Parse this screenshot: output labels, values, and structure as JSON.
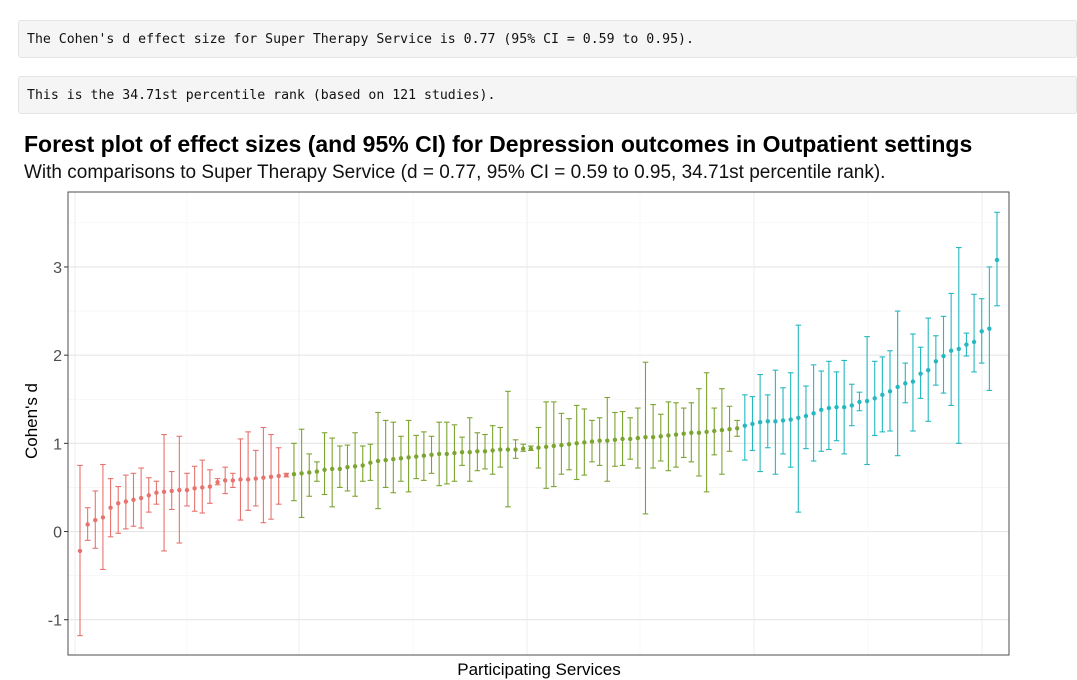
{
  "console_output": [
    "The Cohen's d effect size for Super Therapy Service is 0.77 (95% CI = 0.59 to 0.95).",
    "This is the 34.71st percentile rank (based on 121 studies)."
  ],
  "chart_data": {
    "type": "forest",
    "title": "Forest plot of effect sizes (and 95% CI) for Depression outcomes in Outpatient settings",
    "subtitle": "With comparisons to Super Therapy Service (d = 0.77, 95% CI = 0.59 to 0.95, 34.71st percentile rank).",
    "xlabel": "Participating Services",
    "ylabel": "Cohen's d",
    "ylim": [
      -1.4,
      3.85
    ],
    "yticks": [
      -1,
      0,
      1,
      2,
      3
    ],
    "grid": true,
    "legend": "none",
    "group_colors": [
      "#e8736e",
      "#7ca431",
      "#25b8c0"
    ],
    "n_studies": 121,
    "groups": [
      {
        "d": [
          -0.22,
          0.08,
          0.13,
          0.16,
          0.27,
          0.32,
          0.34,
          0.36,
          0.38,
          0.41,
          0.44,
          0.45,
          0.46,
          0.47,
          0.47,
          0.49,
          0.5,
          0.51,
          0.56,
          0.58,
          0.58,
          0.59,
          0.59,
          0.6,
          0.61,
          0.62,
          0.63,
          0.64
        ],
        "lo": [
          -1.18,
          -0.1,
          -0.19,
          -0.43,
          -0.06,
          -0.02,
          0.03,
          0.06,
          0.04,
          0.22,
          0.31,
          -0.22,
          0.25,
          -0.13,
          0.29,
          0.23,
          0.21,
          0.32,
          0.53,
          0.43,
          0.5,
          0.13,
          0.24,
          0.29,
          0.1,
          0.14,
          0.31,
          0.62
        ],
        "hi": [
          0.75,
          0.27,
          0.46,
          0.76,
          0.6,
          0.51,
          0.64,
          0.66,
          0.72,
          0.61,
          0.57,
          1.1,
          0.68,
          1.08,
          0.66,
          0.74,
          0.81,
          0.7,
          0.6,
          0.73,
          0.66,
          1.05,
          1.13,
          0.92,
          1.18,
          1.1,
          0.95,
          0.66
        ]
      },
      {
        "d": [
          0.65,
          0.66,
          0.67,
          0.68,
          0.7,
          0.71,
          0.71,
          0.73,
          0.74,
          0.75,
          0.78,
          0.8,
          0.81,
          0.82,
          0.83,
          0.84,
          0.85,
          0.86,
          0.87,
          0.88,
          0.88,
          0.89,
          0.9,
          0.9,
          0.91,
          0.91,
          0.92,
          0.93,
          0.93,
          0.93,
          0.94,
          0.94,
          0.95,
          0.96,
          0.97,
          0.98,
          0.99,
          1.0,
          1.01,
          1.02,
          1.03,
          1.03,
          1.04,
          1.05,
          1.05,
          1.06,
          1.07,
          1.07,
          1.08,
          1.09,
          1.1,
          1.11,
          1.12,
          1.12,
          1.13,
          1.14,
          1.15,
          1.16,
          1.17
        ],
        "lo": [
          0.35,
          0.16,
          0.4,
          0.57,
          0.42,
          0.28,
          0.5,
          0.46,
          0.4,
          0.57,
          0.58,
          0.26,
          0.5,
          0.44,
          0.57,
          0.45,
          0.6,
          0.58,
          0.66,
          0.52,
          0.54,
          0.57,
          0.75,
          0.57,
          0.69,
          0.71,
          0.65,
          0.73,
          0.28,
          0.83,
          0.91,
          0.92,
          0.72,
          0.49,
          0.51,
          0.65,
          0.7,
          0.59,
          0.64,
          0.79,
          0.75,
          0.57,
          0.74,
          0.75,
          0.82,
          0.72,
          0.2,
          0.72,
          0.8,
          0.69,
          0.73,
          0.84,
          0.79,
          0.63,
          0.45,
          0.87,
          0.65,
          0.91,
          1.08
        ],
        "hi": [
          1.0,
          1.16,
          0.88,
          0.79,
          1.12,
          1.06,
          0.97,
          0.98,
          1.12,
          0.97,
          0.99,
          1.35,
          1.26,
          1.24,
          1.08,
          1.26,
          1.09,
          1.13,
          1.08,
          1.24,
          1.24,
          1.21,
          1.07,
          1.29,
          1.12,
          1.1,
          1.2,
          1.18,
          1.59,
          1.04,
          0.99,
          0.97,
          1.18,
          1.47,
          1.47,
          1.34,
          1.28,
          1.43,
          1.39,
          1.26,
          1.29,
          1.52,
          1.35,
          1.36,
          1.29,
          1.4,
          1.92,
          1.44,
          1.33,
          1.47,
          1.46,
          1.4,
          1.46,
          1.62,
          1.8,
          1.4,
          1.62,
          1.42,
          1.26
        ]
      },
      {
        "d": [
          1.2,
          1.22,
          1.24,
          1.25,
          1.25,
          1.26,
          1.27,
          1.29,
          1.31,
          1.34,
          1.38,
          1.4,
          1.41,
          1.41,
          1.43,
          1.47,
          1.48,
          1.51,
          1.55,
          1.59,
          1.64,
          1.68,
          1.7,
          1.79,
          1.83,
          1.93,
          1.99,
          2.05,
          2.07,
          2.12,
          2.15,
          2.27,
          2.3,
          3.08
        ],
        "lo": [
          0.81,
          0.92,
          0.68,
          0.95,
          0.65,
          0.88,
          0.73,
          0.22,
          0.94,
          0.8,
          0.91,
          0.93,
          1.03,
          0.88,
          1.2,
          1.37,
          0.76,
          1.09,
          1.13,
          1.14,
          0.86,
          1.46,
          1.14,
          1.51,
          1.25,
          1.66,
          1.57,
          1.43,
          1.0,
          1.99,
          1.81,
          1.91,
          1.6,
          2.56
        ],
        "hi": [
          1.55,
          1.53,
          1.78,
          1.55,
          1.83,
          1.63,
          1.8,
          2.34,
          1.65,
          1.89,
          1.82,
          1.93,
          1.81,
          1.94,
          1.67,
          1.58,
          2.21,
          1.93,
          1.98,
          2.05,
          2.5,
          1.91,
          2.24,
          2.09,
          2.42,
          2.22,
          2.44,
          2.7,
          3.22,
          2.25,
          2.69,
          2.64,
          3.0,
          3.62
        ]
      }
    ]
  }
}
